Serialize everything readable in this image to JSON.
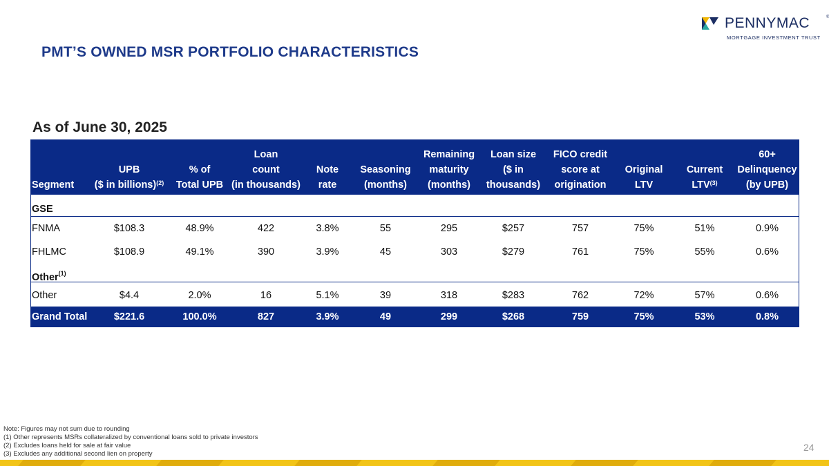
{
  "brand": {
    "name": "PENNYMAC",
    "reg": "®",
    "subtitle": "MORTGAGE INVESTMENT TRUST",
    "colors": {
      "navy": "#0a2a87",
      "title": "#1e3a8a",
      "yellow": "#f2c418"
    }
  },
  "title": "PMT’S OWNED MSR PORTFOLIO CHARACTERISTICS",
  "as_of": "As of June 30, 2025",
  "table": {
    "headers": [
      {
        "lines": [
          "",
          "",
          "Segment"
        ]
      },
      {
        "lines": [
          "",
          "UPB",
          "($ in billions)"
        ],
        "sup": "(2)"
      },
      {
        "lines": [
          "",
          "% of",
          "Total UPB"
        ]
      },
      {
        "lines": [
          "Loan",
          "count",
          "(in thousands)"
        ]
      },
      {
        "lines": [
          "",
          "Note",
          "rate"
        ]
      },
      {
        "lines": [
          "",
          "Seasoning",
          "(months)"
        ]
      },
      {
        "lines": [
          "Remaining",
          "maturity",
          "(months)"
        ]
      },
      {
        "lines": [
          "Loan size",
          "($ in",
          "thousands)"
        ]
      },
      {
        "lines": [
          "FICO credit",
          "score at",
          "origination"
        ]
      },
      {
        "lines": [
          "",
          "Original",
          "LTV"
        ]
      },
      {
        "lines": [
          "",
          "Current",
          "LTV"
        ],
        "sup": "(3)"
      },
      {
        "lines": [
          "60+",
          "Delinquency",
          "(by UPB)"
        ]
      }
    ],
    "group_gse": "GSE",
    "group_other": {
      "label": "Other",
      "sup": "(1)"
    },
    "rows": {
      "fnma": [
        "FNMA",
        "$108.3",
        "48.9%",
        "422",
        "3.8%",
        "55",
        "295",
        "$257",
        "757",
        "75%",
        "51%",
        "0.9%"
      ],
      "fhlmc": [
        "FHLMC",
        "$108.9",
        "49.1%",
        "390",
        "3.9%",
        "45",
        "303",
        "$279",
        "761",
        "75%",
        "55%",
        "0.6%"
      ],
      "other": [
        "Other",
        "$4.4",
        "2.0%",
        "16",
        "5.1%",
        "39",
        "318",
        "$283",
        "762",
        "72%",
        "57%",
        "0.6%"
      ],
      "total": [
        "Grand Total",
        "$221.6",
        "100.0%",
        "827",
        "3.9%",
        "49",
        "299",
        "$268",
        "759",
        "75%",
        "53%",
        "0.8%"
      ]
    }
  },
  "notes": [
    "Note: Figures may not sum due to rounding",
    "(1) Other represents MSRs collateralized by conventional loans sold to private investors",
    "(2) Excludes loans held for sale at fair value",
    "(3) Excludes any additional second lien on property"
  ],
  "page_number": "24"
}
